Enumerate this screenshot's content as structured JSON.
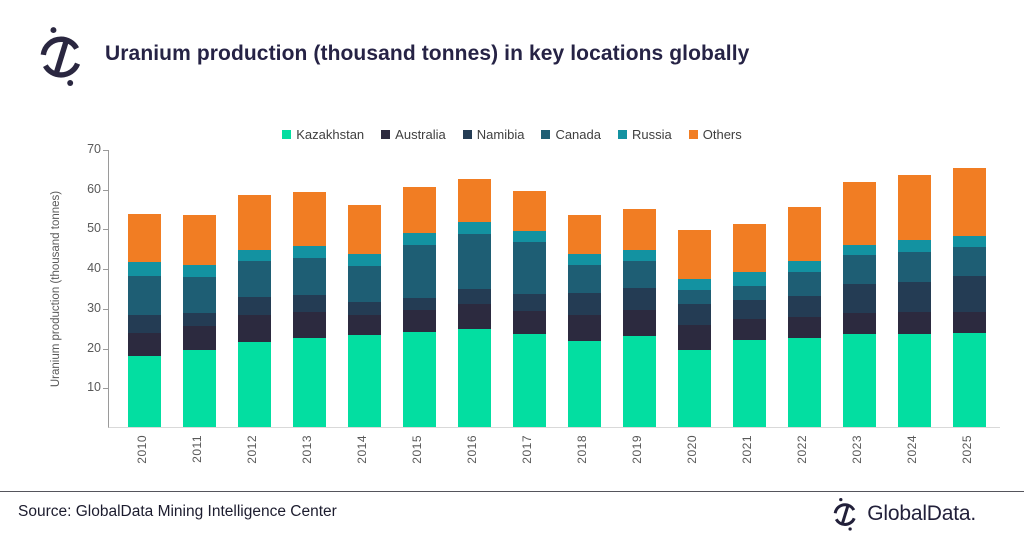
{
  "header": {
    "title": "Uranium production (thousand tonnes) in key locations globally"
  },
  "chart_data": {
    "type": "bar",
    "stacked": true,
    "title": "Uranium production (thousand tonnes) in key locations globally",
    "xlabel": "",
    "ylabel": "Uranium production (thousand tonnes)",
    "ylim": [
      0,
      70
    ],
    "yticks": [
      10,
      20,
      30,
      40,
      50,
      60,
      70
    ],
    "grid": false,
    "legend_position": "top",
    "categories": [
      "2010",
      "2011",
      "2012",
      "2013",
      "2014",
      "2015",
      "2016",
      "2017",
      "2018",
      "2019",
      "2020",
      "2021",
      "2022",
      "2023",
      "2024",
      "2025"
    ],
    "series": [
      {
        "name": "Kazakhstan",
        "color": "#03DEA1",
        "values": [
          17.8,
          19.5,
          21.3,
          22.5,
          23.1,
          23.8,
          24.7,
          23.3,
          21.7,
          22.8,
          19.4,
          22.0,
          22.4,
          23.4,
          23.5,
          23.7
        ]
      },
      {
        "name": "Australia",
        "color": "#2C2A3F",
        "values": [
          5.9,
          6.0,
          7.0,
          6.4,
          5.0,
          5.7,
          6.3,
          5.9,
          6.5,
          6.6,
          6.2,
          5.1,
          5.4,
          5.4,
          5.4,
          5.3
        ]
      },
      {
        "name": "Namibia",
        "color": "#243C54",
        "values": [
          4.5,
          3.3,
          4.5,
          4.3,
          3.3,
          3.0,
          3.7,
          4.2,
          5.5,
          5.5,
          5.4,
          4.9,
          5.2,
          7.2,
          7.6,
          9.1
        ]
      },
      {
        "name": "Canada",
        "color": "#1E5E74",
        "values": [
          9.8,
          9.1,
          9.0,
          9.3,
          9.1,
          13.3,
          14.0,
          13.1,
          7.0,
          6.9,
          3.4,
          3.5,
          6.1,
          7.3,
          7.5,
          7.3
        ]
      },
      {
        "name": "Russia",
        "color": "#1392A1",
        "values": [
          3.6,
          3.0,
          2.9,
          3.1,
          3.0,
          3.1,
          3.0,
          2.9,
          2.9,
          2.9,
          2.8,
          3.5,
          2.7,
          2.5,
          3.2,
          2.6
        ]
      },
      {
        "name": "Others",
        "color": "#F17D23",
        "values": [
          12.1,
          12.6,
          13.8,
          13.7,
          12.5,
          11.6,
          10.7,
          10.1,
          9.9,
          10.1,
          12.4,
          12.2,
          13.5,
          16.0,
          16.3,
          17.2
        ]
      }
    ],
    "totals": [
      53.7,
      53.5,
      58.5,
      59.3,
      56.0,
      60.5,
      62.4,
      59.5,
      53.5,
      54.8,
      49.6,
      51.2,
      55.3,
      61.8,
      63.5,
      65.2
    ]
  },
  "footer": {
    "source": "Source: GlobalData Mining Intelligence Center",
    "brand": "GlobalData."
  },
  "colors": {
    "title_text": "#262345",
    "axis_text": "#595959",
    "legend_text": "#3F3F3F",
    "brand_dark": "#2A2740",
    "divider": "#55555C"
  }
}
